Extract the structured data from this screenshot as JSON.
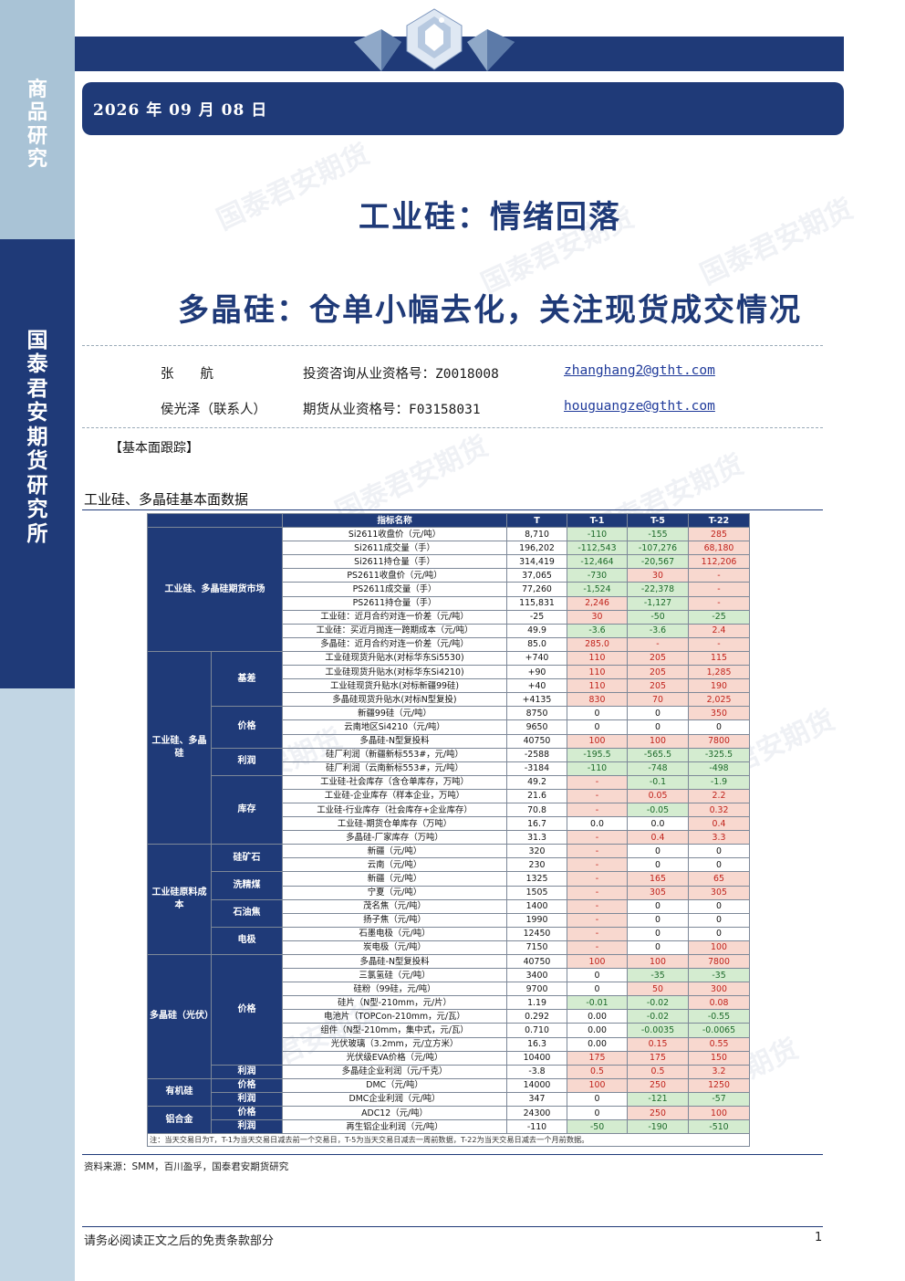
{
  "sidebar": {
    "category": [
      "商",
      "品",
      "研",
      "究"
    ],
    "institute": [
      "国",
      "泰",
      "君",
      "安",
      "期",
      "货",
      "研",
      "究",
      "所"
    ]
  },
  "header": {
    "date": "2026 年 09 月 08 日"
  },
  "watermark": "国泰君安期货",
  "title": "工业硅：情绪回落",
  "subtitle": "多晶硅：仓单小幅去化，关注现货成交情况",
  "authors": [
    {
      "name": "张　　航",
      "license_label": "投资咨询从业资格号：Z0018008",
      "email": "zhanghang2@gtht.com"
    },
    {
      "name": "侯光泽（联系人）",
      "license_label": "期货从业资格号：F03158031",
      "email": "houguangze@gtht.com"
    }
  ],
  "section_label": "【基本面跟踪】",
  "table": {
    "title": "工业硅、多晶硅基本面数据",
    "headers": [
      "指标名称",
      "T",
      "T-1",
      "T-5",
      "T-22"
    ],
    "groups": {
      "futures": "工业硅、多晶硅期货市场",
      "silicon": "工业硅、多晶硅",
      "si_cost": "工业硅原料成本",
      "poly": "多晶硅（光伏）",
      "silicone": "有机硅",
      "aluminum": "铝合金"
    },
    "subgroups": {
      "basis": "基差",
      "price": "价格",
      "profit": "利润",
      "inventory": "库存",
      "quartz": "硅矿石",
      "coal": "洗精煤",
      "coke": "石油焦",
      "electrode": "电极",
      "poly_price": "价格",
      "poly_profit": "利润",
      "silicone_price": "价格",
      "silicone_profit": "利润",
      "al_price": "价格",
      "al_profit": "利润"
    },
    "rows": [
      {
        "name": "Si2611收盘价（元/吨）",
        "t": "8,710",
        "t1": "-110",
        "t5": "-155",
        "t22": "285"
      },
      {
        "name": "Si2611成交量（手）",
        "t": "196,202",
        "t1": "-112,543",
        "t5": "-107,276",
        "t22": "68,180"
      },
      {
        "name": "Si2611持仓量（手）",
        "t": "314,419",
        "t1": "-12,464",
        "t5": "-20,567",
        "t22": "112,206"
      },
      {
        "name": "PS2611收盘价（元/吨）",
        "t": "37,065",
        "t1": "-730",
        "t5": "30",
        "t22": "-"
      },
      {
        "name": "PS2611成交量（手）",
        "t": "77,260",
        "t1": "-1,524",
        "t5": "-22,378",
        "t22": "-"
      },
      {
        "name": "PS2611持仓量（手）",
        "t": "115,831",
        "t1": "2,246",
        "t5": "-1,127",
        "t22": "-"
      },
      {
        "name": "工业硅：近月合约对连一价差（元/吨）",
        "t": "-25",
        "t1": "30",
        "t5": "-50",
        "t22": "-25"
      },
      {
        "name": "工业硅：买近月抛连一跨期成本（元/吨）",
        "t": "49.9",
        "t1": "-3.6",
        "t5": "-3.6",
        "t22": "2.4"
      },
      {
        "name": "多晶硅：近月合约对连一价差（元/吨）",
        "t": "85.0",
        "t1": "285.0",
        "t5": "-",
        "t22": "-"
      },
      {
        "name": "工业硅现货升贴水(对标华东Si5530)",
        "t": "+740",
        "t1": "110",
        "t5": "205",
        "t22": "115"
      },
      {
        "name": "工业硅现货升贴水(对标华东Si4210)",
        "t": "+90",
        "t1": "110",
        "t5": "205",
        "t22": "1,285"
      },
      {
        "name": "工业硅现货升贴水(对标新疆99硅)",
        "t": "+40",
        "t1": "110",
        "t5": "205",
        "t22": "190"
      },
      {
        "name": "多晶硅现货升贴水(对标N型复投)",
        "t": "+4135",
        "t1": "830",
        "t5": "70",
        "t22": "2,025"
      },
      {
        "name": "新疆99硅（元/吨）",
        "t": "8750",
        "t1": "0",
        "t5": "0",
        "t22": "350"
      },
      {
        "name": "云南地区Si4210（元/吨）",
        "t": "9650",
        "t1": "0",
        "t5": "0",
        "t22": "0"
      },
      {
        "name": "多晶硅-N型复投料",
        "t": "40750",
        "t1": "100",
        "t5": "100",
        "t22": "7800"
      },
      {
        "name": "硅厂利润（新疆新标553#，元/吨）",
        "t": "-2588",
        "t1": "-195.5",
        "t5": "-565.5",
        "t22": "-325.5"
      },
      {
        "name": "硅厂利润（云南新标553#，元/吨）",
        "t": "-3184",
        "t1": "-110",
        "t5": "-748",
        "t22": "-498"
      },
      {
        "name": "工业硅-社会库存（含仓单库存，万吨）",
        "t": "49.2",
        "t1": "-",
        "t5": "-0.1",
        "t22": "-1.9"
      },
      {
        "name": "工业硅-企业库存（样本企业，万吨）",
        "t": "21.6",
        "t1": "-",
        "t5": "0.05",
        "t22": "2.2"
      },
      {
        "name": "工业硅-行业库存（社会库存+企业库存）",
        "t": "70.8",
        "t1": "-",
        "t5": "-0.05",
        "t22": "0.32"
      },
      {
        "name": "工业硅-期货仓单库存（万吨）",
        "t": "16.7",
        "t1": "0.0",
        "t5": "0.0",
        "t22": "0.4"
      },
      {
        "name": "多晶硅-厂家库存（万吨）",
        "t": "31.3",
        "t1": "-",
        "t5": "0.4",
        "t22": "3.3"
      },
      {
        "name": "新疆（元/吨）",
        "t": "320",
        "t1": "-",
        "t5": "0",
        "t22": "0"
      },
      {
        "name": "云南（元/吨）",
        "t": "230",
        "t1": "-",
        "t5": "0",
        "t22": "0"
      },
      {
        "name": "新疆（元/吨）",
        "t": "1325",
        "t1": "-",
        "t5": "165",
        "t22": "65"
      },
      {
        "name": "宁夏（元/吨）",
        "t": "1505",
        "t1": "-",
        "t5": "305",
        "t22": "305"
      },
      {
        "name": "茂名焦（元/吨）",
        "t": "1400",
        "t1": "-",
        "t5": "0",
        "t22": "0"
      },
      {
        "name": "扬子焦（元/吨）",
        "t": "1990",
        "t1": "-",
        "t5": "0",
        "t22": "0"
      },
      {
        "name": "石墨电极（元/吨）",
        "t": "12450",
        "t1": "-",
        "t5": "0",
        "t22": "0"
      },
      {
        "name": "炭电极（元/吨）",
        "t": "7150",
        "t1": "-",
        "t5": "0",
        "t22": "100"
      },
      {
        "name": "多晶硅-N型复投料",
        "t": "40750",
        "t1": "100",
        "t5": "100",
        "t22": "7800"
      },
      {
        "name": "三氯氢硅（元/吨）",
        "t": "3400",
        "t1": "0",
        "t5": "-35",
        "t22": "-35"
      },
      {
        "name": "硅粉（99硅，元/吨）",
        "t": "9700",
        "t1": "0",
        "t5": "50",
        "t22": "300"
      },
      {
        "name": "硅片（N型-210mm，元/片）",
        "t": "1.19",
        "t1": "-0.01",
        "t5": "-0.02",
        "t22": "0.08"
      },
      {
        "name": "电池片（TOPCon-210mm，元/瓦）",
        "t": "0.292",
        "t1": "0.00",
        "t5": "-0.02",
        "t22": "-0.55"
      },
      {
        "name": "组件（N型-210mm，集中式，元/瓦）",
        "t": "0.710",
        "t1": "0.00",
        "t5": "-0.0035",
        "t22": "-0.0065"
      },
      {
        "name": "光伏玻璃（3.2mm，元/立方米）",
        "t": "16.3",
        "t1": "0.00",
        "t5": "0.15",
        "t22": "0.55"
      },
      {
        "name": "光伏级EVA价格（元/吨）",
        "t": "10400",
        "t1": "175",
        "t5": "175",
        "t22": "150"
      },
      {
        "name": "多晶硅企业利润（元/千克）",
        "t": "-3.8",
        "t1": "0.5",
        "t5": "0.5",
        "t22": "3.2"
      },
      {
        "name": "DMC（元/吨）",
        "t": "14000",
        "t1": "100",
        "t5": "250",
        "t22": "1250"
      },
      {
        "name": "DMC企业利润（元/吨）",
        "t": "347",
        "t1": "0",
        "t5": "-121",
        "t22": "-57"
      },
      {
        "name": "ADC12（元/吨）",
        "t": "24300",
        "t1": "0",
        "t5": "250",
        "t22": "100"
      },
      {
        "name": "再生铝企业利润（元/吨）",
        "t": "-110",
        "t1": "-50",
        "t5": "-190",
        "t22": "-510"
      }
    ],
    "note": "注：当天交易日为T，T-1为当天交易日减去前一个交易日，T-5为当天交易日减去一周前数据，T-22为当天交易日减去一个月前数据。"
  },
  "source": "资料来源：SMM，百川盈孚，国泰君安期货研究",
  "footer": {
    "disclaimer": "请务必阅读正文之后的免责条款部分",
    "page": "1"
  },
  "colors": {
    "navy": "#1f3a78",
    "positive_bg": "#f8d8cf",
    "negative_bg": "#d4ecd0"
  }
}
